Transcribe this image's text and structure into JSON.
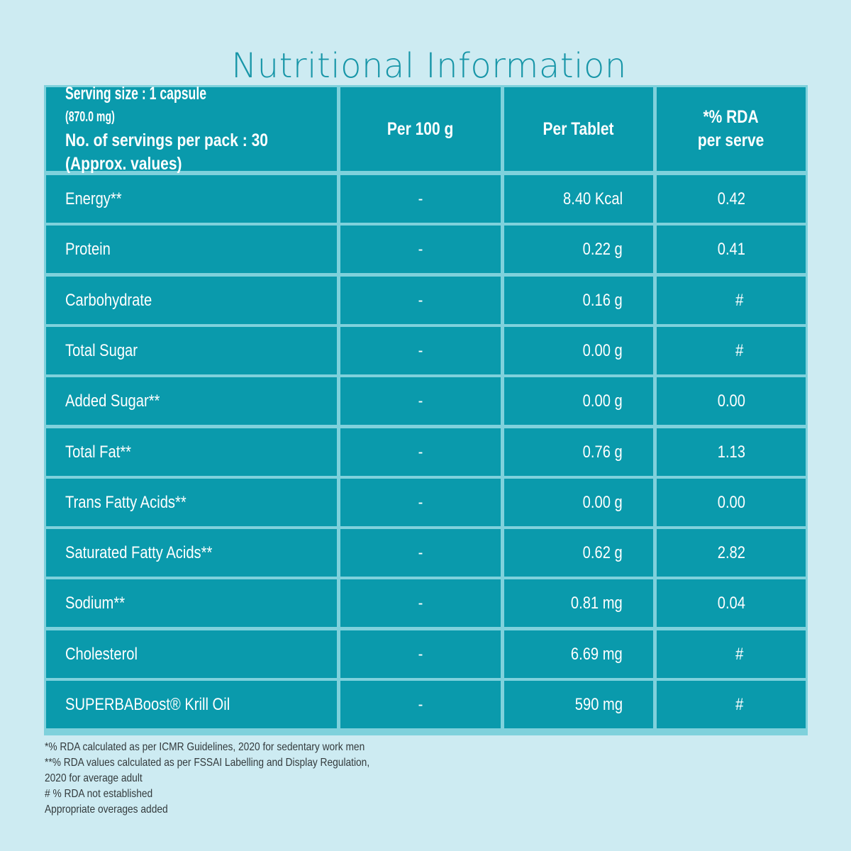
{
  "title": "Nutritional Information",
  "header": {
    "serving_label": "Serving size : 1 capsule",
    "serving_weight": "(870.0 mg)",
    "servings_per_pack": "No. of servings per pack : 30",
    "approx": "(Approx. values)",
    "col_per100g": "Per 100 g",
    "col_per_tablet": "Per Tablet",
    "col_rda_line1": "*% RDA",
    "col_rda_line2": "per serve"
  },
  "rows": [
    {
      "name": "Energy**",
      "per100g": "-",
      "per_tablet": "8.40 Kcal",
      "rda": "0.42"
    },
    {
      "name": "Protein",
      "per100g": "-",
      "per_tablet": "0.22 g",
      "rda": "0.41"
    },
    {
      "name": "Carbohydrate",
      "per100g": "-",
      "per_tablet": "0.16 g",
      "rda": "#"
    },
    {
      "name": "Total Sugar",
      "per100g": "-",
      "per_tablet": "0.00 g",
      "rda": "#"
    },
    {
      "name": "Added Sugar**",
      "per100g": "-",
      "per_tablet": "0.00 g",
      "rda": "0.00"
    },
    {
      "name": "Total Fat**",
      "per100g": "-",
      "per_tablet": "0.76 g",
      "rda": "1.13"
    },
    {
      "name": "Trans Fatty Acids**",
      "per100g": "-",
      "per_tablet": "0.00 g",
      "rda": "0.00"
    },
    {
      "name": "Saturated Fatty Acids**",
      "per100g": "-",
      "per_tablet": "0.62 g",
      "rda": "2.82"
    },
    {
      "name": "Sodium**",
      "per100g": "-",
      "per_tablet": "0.81 mg",
      "rda": "0.04"
    },
    {
      "name": "Cholesterol",
      "per100g": "-",
      "per_tablet": "6.69 mg",
      "rda": "#"
    },
    {
      "name": "SUPERBABoost® Krill Oil",
      "per100g": "-",
      "per_tablet": "590 mg",
      "rda": "#"
    }
  ],
  "footnotes": [
    "*% RDA calculated as per ICMR Guidelines, 2020 for sedentary work men",
    "**% RDA values calculated as per FSSAI Labelling and Display Regulation,",
    "2020 for average adult",
    "# % RDA not established",
    "Appropriate overages added"
  ],
  "colors": {
    "background": "#cdebf2",
    "cell": "#0a9aac",
    "grid": "#7fd1dc",
    "title": "#1896a8"
  }
}
